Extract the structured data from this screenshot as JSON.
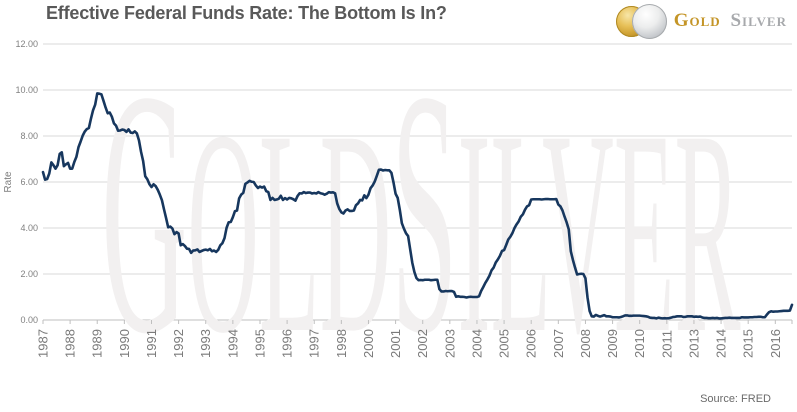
{
  "page": {
    "title": "Effective Federal Funds Rate: The Bottom Is In?",
    "source": "Source: FRED"
  },
  "logo": {
    "gold_text": "Gold",
    "silver_text": "Silver",
    "gold_color": "#C49527",
    "silver_color": "#A7A9AC",
    "gold_coin_icon": "gold-coin",
    "silver_coin_icon": "silver-coin"
  },
  "watermark": {
    "text": "GoldSilver",
    "color": "#f2f0f0"
  },
  "chart_data": {
    "type": "line",
    "title": "Effective Federal Funds Rate: The Bottom Is In?",
    "xlabel": "",
    "ylabel": "Rate",
    "ylim": [
      0,
      12
    ],
    "grid": "horizontal",
    "legend": "none",
    "x_frequency": "monthly",
    "x_start": "1987-01",
    "x_end": "2016-12",
    "x_tick_interval_months": 13,
    "x_tick_labels": [
      "1987",
      "1988",
      "1989",
      "1990",
      "1991",
      "1992",
      "1993",
      "1994",
      "1995",
      "1996",
      "1997",
      "1998",
      "2000",
      "2001",
      "2002",
      "2003",
      "2004",
      "2005",
      "2006",
      "2007",
      "2008",
      "2009",
      "2010",
      "2011",
      "2013",
      "2014",
      "2015",
      "2016"
    ],
    "y_axis": {
      "title": "Rate",
      "ticks": [
        {
          "value": 0,
          "label": "0.00"
        },
        {
          "value": 2,
          "label": "2.00"
        },
        {
          "value": 4,
          "label": "4.00"
        },
        {
          "value": 6,
          "label": "6.00"
        },
        {
          "value": 8,
          "label": "8.00"
        },
        {
          "value": 10,
          "label": "10.00"
        },
        {
          "value": 12,
          "label": "12.00"
        }
      ]
    },
    "colors": {
      "line": "#17375E",
      "gridline": "#d9d9d9",
      "axis": "#bfbfbf",
      "axis_label": "#7a7a7a",
      "title": "#595959"
    },
    "series": [
      {
        "name": "Effective Federal Funds Rate (%, monthly)",
        "color": "#17375E",
        "values_by_year": {
          "1987": [
            6.43,
            6.1,
            6.13,
            6.37,
            6.85,
            6.73,
            6.58,
            6.73,
            7.22,
            7.29,
            6.69,
            6.77
          ],
          "1988": [
            6.83,
            6.58,
            6.58,
            6.87,
            7.09,
            7.51,
            7.75,
            8.01,
            8.19,
            8.3,
            8.35,
            8.76
          ],
          "1989": [
            9.12,
            9.36,
            9.85,
            9.84,
            9.81,
            9.53,
            9.24,
            8.99,
            9.02,
            8.84,
            8.55,
            8.45
          ],
          "1990": [
            8.23,
            8.24,
            8.28,
            8.26,
            8.18,
            8.29,
            8.15,
            8.13,
            8.2,
            8.11,
            7.81,
            7.31
          ],
          "1991": [
            6.91,
            6.25,
            6.12,
            5.91,
            5.78,
            5.9,
            5.82,
            5.66,
            5.45,
            5.21,
            4.81,
            4.43
          ],
          "1992": [
            4.03,
            4.06,
            3.98,
            3.73,
            3.82,
            3.76,
            3.25,
            3.3,
            3.22,
            3.1,
            3.09,
            2.92
          ],
          "1993": [
            3.02,
            3.03,
            3.07,
            2.96,
            3.0,
            3.04,
            3.06,
            3.03,
            3.09,
            2.99,
            3.02,
            2.96
          ],
          "1994": [
            3.05,
            3.25,
            3.34,
            3.56,
            4.01,
            4.25,
            4.26,
            4.47,
            4.73,
            4.76,
            5.29,
            5.45
          ],
          "1995": [
            5.53,
            5.92,
            5.98,
            6.05,
            6.01,
            6.0,
            5.85,
            5.74,
            5.8,
            5.76,
            5.8,
            5.6
          ],
          "1996": [
            5.56,
            5.22,
            5.31,
            5.22,
            5.24,
            5.27,
            5.4,
            5.22,
            5.3,
            5.24,
            5.31,
            5.29
          ],
          "1997": [
            5.25,
            5.19,
            5.39,
            5.51,
            5.5,
            5.56,
            5.52,
            5.54,
            5.54,
            5.5,
            5.52,
            5.5
          ],
          "1998": [
            5.56,
            5.51,
            5.49,
            5.45,
            5.49,
            5.56,
            5.54,
            5.55,
            5.51,
            5.07,
            4.83,
            4.68
          ],
          "1999": [
            4.63,
            4.76,
            4.81,
            4.74,
            4.74,
            4.76,
            4.99,
            5.07,
            5.22,
            5.2,
            5.42,
            5.3
          ],
          "2000": [
            5.45,
            5.73,
            5.85,
            6.02,
            6.27,
            6.53,
            6.54,
            6.5,
            6.52,
            6.51,
            6.51,
            6.4
          ],
          "2001": [
            5.98,
            5.49,
            5.31,
            4.8,
            4.21,
            3.97,
            3.77,
            3.65,
            3.07,
            2.49,
            2.09,
            1.82
          ],
          "2002": [
            1.73,
            1.74,
            1.73,
            1.75,
            1.75,
            1.75,
            1.73,
            1.74,
            1.75,
            1.75,
            1.34,
            1.24
          ],
          "2003": [
            1.24,
            1.26,
            1.25,
            1.26,
            1.26,
            1.22,
            1.01,
            1.03,
            1.01,
            1.01,
            1.0,
            0.98
          ],
          "2004": [
            1.0,
            1.01,
            1.0,
            1.0,
            1.0,
            1.03,
            1.26,
            1.43,
            1.61,
            1.76,
            1.93,
            2.16
          ],
          "2005": [
            2.28,
            2.5,
            2.63,
            2.79,
            3.0,
            3.04,
            3.26,
            3.5,
            3.62,
            3.78,
            4.0,
            4.16
          ],
          "2006": [
            4.29,
            4.49,
            4.59,
            4.79,
            4.94,
            4.99,
            5.24,
            5.25,
            5.25,
            5.25,
            5.25,
            5.24
          ],
          "2007": [
            5.25,
            5.26,
            5.26,
            5.25,
            5.25,
            5.25,
            5.26,
            5.02,
            4.94,
            4.76,
            4.49,
            4.24
          ],
          "2008": [
            3.94,
            2.98,
            2.61,
            2.28,
            1.98,
            2.0,
            2.01,
            2.0,
            1.81,
            0.97,
            0.39,
            0.16
          ],
          "2009": [
            0.15,
            0.22,
            0.18,
            0.15,
            0.18,
            0.21,
            0.16,
            0.16,
            0.15,
            0.12,
            0.12,
            0.12
          ],
          "2010": [
            0.11,
            0.13,
            0.16,
            0.2,
            0.2,
            0.18,
            0.18,
            0.19,
            0.19,
            0.19,
            0.19,
            0.18
          ],
          "2011": [
            0.17,
            0.16,
            0.14,
            0.1,
            0.09,
            0.09,
            0.07,
            0.1,
            0.08,
            0.07,
            0.08,
            0.07
          ],
          "2012": [
            0.08,
            0.1,
            0.13,
            0.14,
            0.16,
            0.16,
            0.16,
            0.13,
            0.14,
            0.16,
            0.16,
            0.16
          ],
          "2013": [
            0.14,
            0.15,
            0.14,
            0.15,
            0.11,
            0.09,
            0.09,
            0.08,
            0.08,
            0.09,
            0.08,
            0.09
          ],
          "2014": [
            0.07,
            0.07,
            0.08,
            0.09,
            0.09,
            0.1,
            0.09,
            0.09,
            0.09,
            0.09,
            0.09,
            0.12
          ],
          "2015": [
            0.11,
            0.11,
            0.11,
            0.12,
            0.12,
            0.13,
            0.13,
            0.14,
            0.14,
            0.12,
            0.12,
            0.24
          ],
          "2016": [
            0.34,
            0.38,
            0.36,
            0.37,
            0.37,
            0.38,
            0.39,
            0.4,
            0.4,
            0.4,
            0.41,
            0.66
          ]
        }
      }
    ],
    "source": "Source: FRED"
  }
}
